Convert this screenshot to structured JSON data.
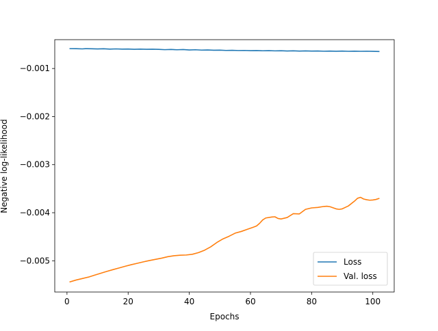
{
  "chart_data": {
    "type": "line",
    "xlabel": "Epochs",
    "ylabel": "Negative log-likelihood",
    "xlim": [
      -4,
      107
    ],
    "ylim": [
      -0.00565,
      -0.0004
    ],
    "xticks": [
      0,
      20,
      40,
      60,
      80,
      100
    ],
    "xtick_labels": [
      "0",
      "20",
      "40",
      "60",
      "80",
      "100"
    ],
    "yticks": [
      -0.005,
      -0.004,
      -0.003,
      -0.002,
      -0.001
    ],
    "ytick_labels": [
      "−0.005",
      "−0.004",
      "−0.003",
      "−0.002",
      "−0.001"
    ],
    "grid": false,
    "legend_position": "lower right",
    "series": [
      {
        "name": "Loss",
        "color": "#1f77b4",
        "points": [
          [
            1,
            -0.000587
          ],
          [
            3,
            -0.000588
          ],
          [
            5,
            -0.000592
          ],
          [
            6,
            -0.000587
          ],
          [
            8,
            -0.00059
          ],
          [
            10,
            -0.000593
          ],
          [
            12,
            -0.00059
          ],
          [
            14,
            -0.000596
          ],
          [
            16,
            -0.000592
          ],
          [
            18,
            -0.000597
          ],
          [
            20,
            -0.000595
          ],
          [
            22,
            -0.0006
          ],
          [
            24,
            -0.000596
          ],
          [
            26,
            -0.0006
          ],
          [
            28,
            -0.000598
          ],
          [
            30,
            -0.000602
          ],
          [
            32,
            -0.000608
          ],
          [
            34,
            -0.000604
          ],
          [
            36,
            -0.00061
          ],
          [
            38,
            -0.000606
          ],
          [
            40,
            -0.000614
          ],
          [
            42,
            -0.00061
          ],
          [
            44,
            -0.000617
          ],
          [
            46,
            -0.000614
          ],
          [
            48,
            -0.00062
          ],
          [
            50,
            -0.000618
          ],
          [
            52,
            -0.000624
          ],
          [
            54,
            -0.000621
          ],
          [
            56,
            -0.000626
          ],
          [
            58,
            -0.000624
          ],
          [
            60,
            -0.000628
          ],
          [
            62,
            -0.000627
          ],
          [
            64,
            -0.000631
          ],
          [
            66,
            -0.000628
          ],
          [
            68,
            -0.000633
          ],
          [
            70,
            -0.00063
          ],
          [
            72,
            -0.000635
          ],
          [
            74,
            -0.000632
          ],
          [
            76,
            -0.000638
          ],
          [
            78,
            -0.000634
          ],
          [
            80,
            -0.000637
          ],
          [
            82,
            -0.000635
          ],
          [
            84,
            -0.00064
          ],
          [
            86,
            -0.000637
          ],
          [
            88,
            -0.000641
          ],
          [
            90,
            -0.000638
          ],
          [
            92,
            -0.000642
          ],
          [
            94,
            -0.000639
          ],
          [
            96,
            -0.000642
          ],
          [
            98,
            -0.00064
          ],
          [
            100,
            -0.000643
          ],
          [
            102,
            -0.000646
          ]
        ]
      },
      {
        "name": "Val. loss",
        "color": "#ff7f0e",
        "points": [
          [
            1,
            -0.005438
          ],
          [
            3,
            -0.0054
          ],
          [
            5,
            -0.00537
          ],
          [
            7,
            -0.00534
          ],
          [
            9,
            -0.0053
          ],
          [
            11,
            -0.00526
          ],
          [
            13,
            -0.005222
          ],
          [
            15,
            -0.005185
          ],
          [
            17,
            -0.00515
          ],
          [
            19,
            -0.005115
          ],
          [
            21,
            -0.005082
          ],
          [
            23,
            -0.005052
          ],
          [
            25,
            -0.005022
          ],
          [
            27,
            -0.004995
          ],
          [
            29,
            -0.00497
          ],
          [
            31,
            -0.004945
          ],
          [
            33,
            -0.004915
          ],
          [
            35,
            -0.004895
          ],
          [
            37,
            -0.004885
          ],
          [
            39,
            -0.00488
          ],
          [
            41,
            -0.004865
          ],
          [
            43,
            -0.00483
          ],
          [
            45,
            -0.00478
          ],
          [
            47,
            -0.00471
          ],
          [
            49,
            -0.00462
          ],
          [
            51,
            -0.004545
          ],
          [
            53,
            -0.00449
          ],
          [
            55,
            -0.004425
          ],
          [
            57,
            -0.00439
          ],
          [
            59,
            -0.004345
          ],
          [
            61,
            -0.0043
          ],
          [
            62,
            -0.004275
          ],
          [
            63,
            -0.00422
          ],
          [
            64,
            -0.00415
          ],
          [
            65,
            -0.00411
          ],
          [
            67,
            -0.00409
          ],
          [
            68,
            -0.004085
          ],
          [
            69,
            -0.00412
          ],
          [
            70,
            -0.00413
          ],
          [
            72,
            -0.0041
          ],
          [
            74,
            -0.00402
          ],
          [
            76,
            -0.004025
          ],
          [
            78,
            -0.00393
          ],
          [
            80,
            -0.0039
          ],
          [
            82,
            -0.00389
          ],
          [
            84,
            -0.00387
          ],
          [
            85,
            -0.003865
          ],
          [
            86,
            -0.003875
          ],
          [
            88,
            -0.00392
          ],
          [
            89,
            -0.00393
          ],
          [
            90,
            -0.00392
          ],
          [
            92,
            -0.00386
          ],
          [
            94,
            -0.00376
          ],
          [
            95,
            -0.0037
          ],
          [
            96,
            -0.00368
          ],
          [
            97,
            -0.003715
          ],
          [
            98,
            -0.00373
          ],
          [
            99,
            -0.00374
          ],
          [
            100,
            -0.003735
          ],
          [
            101,
            -0.003725
          ],
          [
            102,
            -0.003705
          ]
        ]
      }
    ]
  }
}
